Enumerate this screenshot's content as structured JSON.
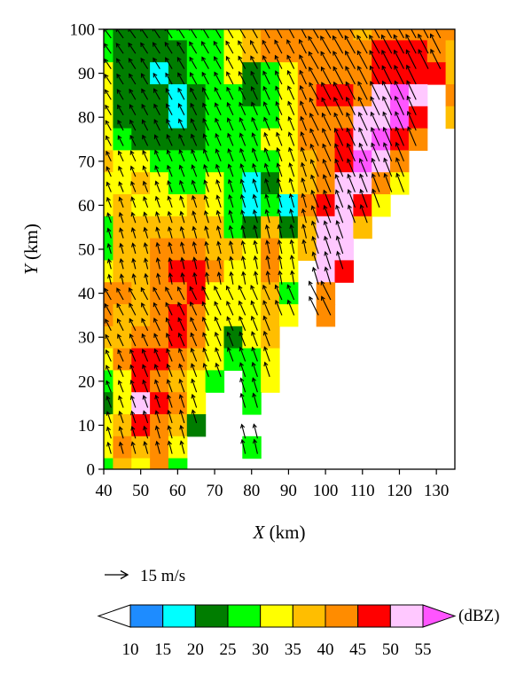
{
  "chart_data": {
    "type": "heatmap",
    "description_text": "",
    "xlabel_var": "X",
    "xlabel_unit": "(km)",
    "ylabel_var": "Y",
    "ylabel_unit": "(km)",
    "xlim": [
      40,
      135
    ],
    "ylim": [
      0,
      100
    ],
    "x_ticks": [
      "40",
      "50",
      "60",
      "70",
      "80",
      "90",
      "100",
      "110",
      "120",
      "130"
    ],
    "x_tick_values": [
      40,
      50,
      60,
      70,
      80,
      90,
      100,
      110,
      120,
      130
    ],
    "y_ticks": [
      "0",
      "10",
      "20",
      "30",
      "40",
      "50",
      "60",
      "70",
      "80",
      "90",
      "100"
    ],
    "y_tick_values": [
      0,
      10,
      20,
      30,
      40,
      50,
      60,
      70,
      80,
      90,
      100
    ],
    "reference_vector": {
      "label": "15 m/s",
      "speed": 15
    },
    "colorbar": {
      "unit": "(dBZ)",
      "tick_labels": [
        "10",
        "15",
        "20",
        "25",
        "30",
        "35",
        "40",
        "45",
        "50",
        "55"
      ],
      "levels": [
        10,
        15,
        20,
        25,
        30,
        35,
        40,
        45,
        50,
        55
      ],
      "colors": [
        "#ffffff",
        "#1e8cff",
        "#00ffff",
        "#007d00",
        "#00ff00",
        "#ffff00",
        "#ffbe00",
        "#ff8c00",
        "#ff0000",
        "#ffc8ff",
        "#ff55ff"
      ]
    },
    "reflectivity_grid": {
      "x_start": 40,
      "dx": 5,
      "y_start": 100,
      "dy": -5,
      "rows": [
        [
          25,
          22,
          22,
          21,
          27,
          27,
          28,
          33,
          38,
          42,
          42,
          42,
          43,
          40,
          38,
          40,
          42,
          44,
          43,
          40
        ],
        [
          29,
          20,
          20,
          20,
          23,
          27,
          27,
          33,
          37,
          42,
          42,
          43,
          41,
          41,
          43,
          45,
          45,
          46,
          44,
          38
        ],
        [
          32,
          22,
          22,
          18,
          24,
          27,
          26,
          32,
          22,
          27,
          33,
          41,
          43,
          43,
          40,
          45,
          48,
          46,
          45,
          38
        ],
        [
          34,
          24,
          24,
          20,
          19,
          23,
          28,
          27,
          21,
          25,
          32,
          40,
          45,
          45,
          44,
          50,
          55,
          50,
          0,
          40
        ],
        [
          34,
          23,
          22,
          22,
          17,
          20,
          29,
          27,
          27,
          25,
          34,
          40,
          43,
          44,
          50,
          53,
          56,
          48,
          0,
          38
        ],
        [
          33,
          25,
          24,
          21,
          24,
          24,
          29,
          28,
          29,
          31,
          34,
          40,
          42,
          48,
          52,
          56,
          49,
          42,
          0,
          0
        ],
        [
          36,
          33,
          34,
          28,
          29,
          26,
          28,
          28,
          27,
          28,
          32,
          37,
          41,
          45,
          57,
          52,
          44,
          0,
          0,
          0
        ],
        [
          33,
          33,
          35,
          31,
          28,
          28,
          31,
          27,
          18,
          24,
          32,
          38,
          43,
          51,
          53,
          42,
          30,
          0,
          0,
          0
        ],
        [
          33,
          35,
          34,
          33,
          33,
          35,
          31,
          28,
          18,
          28,
          18,
          40,
          49,
          54,
          48,
          30,
          0,
          0,
          0,
          0
        ],
        [
          28,
          35,
          35,
          36,
          37,
          38,
          35,
          27,
          22,
          35,
          20,
          38,
          50,
          52,
          35,
          0,
          0,
          0,
          0,
          0
        ],
        [
          25,
          36,
          38,
          40,
          40,
          44,
          38,
          35,
          30,
          40,
          30,
          35,
          53,
          50,
          0,
          0,
          0,
          0,
          0,
          0
        ],
        [
          33,
          39,
          38,
          42,
          45,
          45,
          43,
          33,
          30,
          42,
          33,
          0,
          50,
          45,
          0,
          0,
          0,
          0,
          0,
          0
        ],
        [
          42,
          40,
          38,
          42,
          44,
          45,
          30,
          30,
          33,
          38,
          29,
          0,
          43,
          0,
          0,
          0,
          0,
          0,
          0,
          0
        ],
        [
          40,
          36,
          36,
          40,
          45,
          42,
          34,
          34,
          30,
          38,
          31,
          0,
          40,
          0,
          0,
          0,
          0,
          0,
          0,
          0
        ],
        [
          36,
          37,
          40,
          44,
          48,
          44,
          33,
          24,
          32,
          36,
          0,
          0,
          0,
          0,
          0,
          0,
          0,
          0,
          0,
          0
        ],
        [
          33,
          44,
          47,
          46,
          44,
          36,
          32,
          25,
          28,
          34,
          0,
          0,
          0,
          0,
          0,
          0,
          0,
          0,
          0,
          0
        ],
        [
          26,
          32,
          48,
          42,
          38,
          31,
          25,
          0,
          29,
          30,
          0,
          0,
          0,
          0,
          0,
          0,
          0,
          0,
          0,
          0
        ],
        [
          24,
          33,
          50,
          46,
          40,
          30,
          0,
          0,
          27,
          0,
          0,
          0,
          0,
          0,
          0,
          0,
          0,
          0,
          0,
          0
        ],
        [
          30,
          37,
          46,
          44,
          37,
          22,
          0,
          0,
          0,
          0,
          0,
          0,
          0,
          0,
          0,
          0,
          0,
          0,
          0,
          0
        ],
        [
          32,
          44,
          36,
          42,
          30,
          0,
          0,
          0,
          25,
          0,
          0,
          0,
          0,
          0,
          0,
          0,
          0,
          0,
          0,
          0
        ],
        [
          26,
          35,
          30,
          40,
          28,
          0,
          0,
          0,
          0,
          0,
          0,
          0,
          0,
          0,
          0,
          0,
          0,
          0,
          0,
          0
        ],
        [
          28,
          33,
          32,
          31,
          0,
          0,
          0,
          0,
          0,
          0,
          0,
          0,
          0,
          0,
          0,
          0,
          0,
          0,
          0,
          0
        ]
      ]
    },
    "colors": {
      "frame": "#000000",
      "arrow": "#000000",
      "background": "#ffffff"
    }
  }
}
